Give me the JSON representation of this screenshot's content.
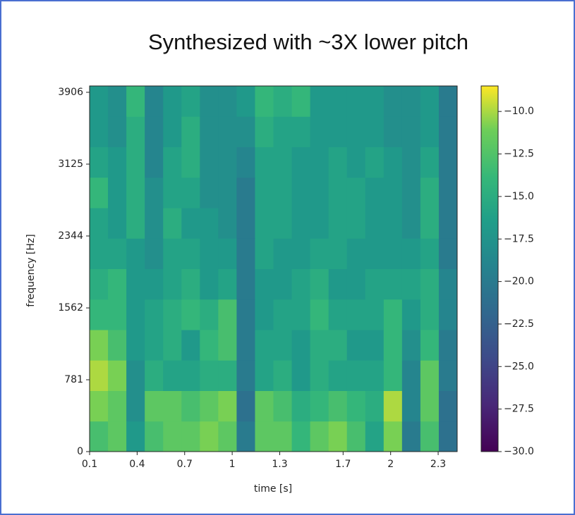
{
  "chart_data": {
    "type": "heatmap",
    "title": "Synthesized with ~3X lower pitch",
    "x_label": "time [s]",
    "y_label": "frequency [Hz]",
    "xlim": [
      0.1,
      2.42
    ],
    "xticks": [
      0.1,
      0.4,
      0.7,
      1.0,
      1.3,
      1.7,
      2.0,
      2.3
    ],
    "ylim": [
      0,
      3975
    ],
    "yticks": [
      0,
      781,
      1562,
      2344,
      3125,
      3906
    ],
    "colormap": "viridis",
    "clim": [
      -30,
      -8.5
    ],
    "cticks": [
      {
        "value": -10,
        "label": "−10.0"
      },
      {
        "value": -12.5,
        "label": "−12.5"
      },
      {
        "value": -15,
        "label": "−15.0"
      },
      {
        "value": -17.5,
        "label": "−17.5"
      },
      {
        "value": -20,
        "label": "−20.0"
      },
      {
        "value": -22.5,
        "label": "−22.5"
      },
      {
        "value": -25,
        "label": "−25.0"
      },
      {
        "value": -27.5,
        "label": "−27.5"
      },
      {
        "value": -30,
        "label": "−30.0"
      }
    ],
    "z": [
      [
        -13,
        -12,
        -17,
        -13,
        -12,
        -12,
        -11,
        -12,
        -20,
        -12,
        -12,
        -14,
        -12,
        -11,
        -13,
        -16,
        -11,
        -20,
        -13,
        -21
      ],
      [
        -11,
        -12,
        -18,
        -12,
        -12,
        -13,
        -12,
        -11,
        -21,
        -12,
        -13,
        -15,
        -14,
        -13,
        -14,
        -15,
        -10,
        -19,
        -12,
        -21
      ],
      [
        -10,
        -11,
        -18,
        -15,
        -16,
        -16,
        -15,
        -15,
        -20,
        -16,
        -15,
        -17,
        -15,
        -16,
        -16,
        -16,
        -14,
        -19,
        -12,
        -20
      ],
      [
        -11,
        -13,
        -17,
        -16,
        -15,
        -17,
        -14,
        -13,
        -20,
        -16,
        -16,
        -17,
        -15,
        -15,
        -17,
        -17,
        -14,
        -18,
        -14,
        -20
      ],
      [
        -14,
        -14,
        -17,
        -16,
        -15,
        -14,
        -15,
        -13,
        -20,
        -17,
        -16,
        -16,
        -14,
        -16,
        -16,
        -16,
        -14,
        -17,
        -15,
        -19
      ],
      [
        -15,
        -14,
        -17,
        -17,
        -16,
        -15,
        -17,
        -16,
        -20,
        -17,
        -17,
        -16,
        -15,
        -17,
        -17,
        -16,
        -16,
        -16,
        -15,
        -19
      ],
      [
        -16,
        -16,
        -17,
        -18,
        -16,
        -16,
        -17,
        -17,
        -20,
        -16,
        -17,
        -17,
        -16,
        -16,
        -17,
        -17,
        -17,
        -17,
        -16,
        -20
      ],
      [
        -16,
        -17,
        -15,
        -18,
        -15,
        -17,
        -17,
        -18,
        -20,
        -16,
        -16,
        -17,
        -17,
        -16,
        -16,
        -17,
        -17,
        -18,
        -15,
        -20
      ],
      [
        -14,
        -17,
        -15,
        -18,
        -16,
        -16,
        -18,
        -18,
        -20,
        -16,
        -16,
        -17,
        -17,
        -16,
        -16,
        -17,
        -17,
        -18,
        -15,
        -20
      ],
      [
        -16,
        -17,
        -15,
        -19,
        -16,
        -15,
        -18,
        -18,
        -19,
        -16,
        -16,
        -17,
        -17,
        -16,
        -17,
        -16,
        -17,
        -18,
        -16,
        -20
      ],
      [
        -17,
        -18,
        -15,
        -19,
        -17,
        -15,
        -18,
        -18,
        -18,
        -15,
        -16,
        -16,
        -17,
        -17,
        -17,
        -17,
        -18,
        -18,
        -17,
        -20
      ],
      [
        -17,
        -18,
        -14,
        -19,
        -17,
        -16,
        -18,
        -18,
        -17,
        -14,
        -15,
        -14,
        -17,
        -17,
        -17,
        -17,
        -18,
        -18,
        -17,
        -20
      ]
    ]
  }
}
